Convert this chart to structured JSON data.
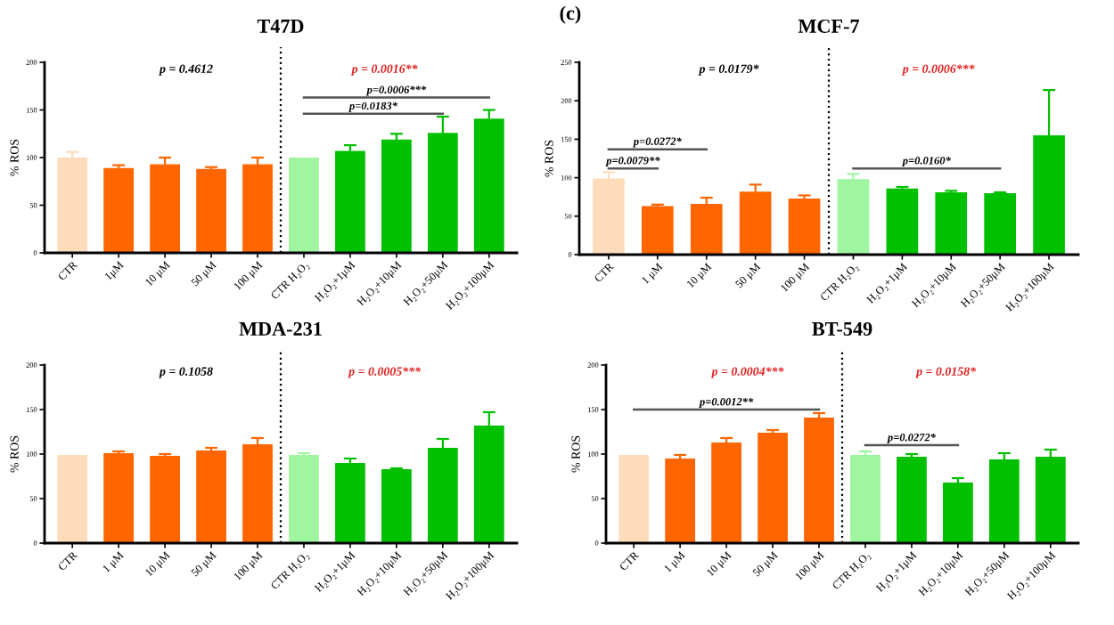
{
  "chart_data": [
    {
      "type": "bar",
      "title": "T47D",
      "ylabel": "% ROS",
      "categories": [
        "CTR",
        "1μM",
        "10 μM",
        "50 μM",
        "100 μM",
        "CTR H₂O₂",
        "H₂O₂+1μM",
        "H₂O₂+10μM",
        "H₂O₂+50μM",
        "H₂O₂+100μM"
      ],
      "values": [
        100,
        89,
        93,
        88,
        93,
        100,
        107,
        119,
        126,
        141
      ],
      "errors": [
        6,
        3,
        7,
        2,
        7,
        null,
        6,
        6,
        17,
        9
      ],
      "colors": [
        "#fddcbc",
        "#ff6600",
        "#ff6600",
        "#ff6600",
        "#ff6600",
        "#a0f5a0",
        "#00c000",
        "#00c000",
        "#00c000",
        "#00c000"
      ],
      "ylim": [
        0,
        200
      ],
      "yticks": [
        0,
        50,
        100,
        150,
        200
      ],
      "annotations": [
        "p = 0.4612",
        "p = 0.0016**",
        "p=0.0006***",
        "p=0.0183*"
      ]
    },
    {
      "type": "bar",
      "title": "MCF-7",
      "ylabel": "% ROS",
      "categories": [
        "CTR",
        "1 μM",
        "10 μM",
        "50 μM",
        "100 μM",
        "CTR H₂O₂",
        "H₂O₂+1μM",
        "H₂O₂+10μM",
        "H₂O₂+50μM",
        "H₂O₂+100μM"
      ],
      "values": [
        99,
        63,
        66,
        82,
        73,
        98,
        86,
        81,
        80,
        155
      ],
      "errors": [
        8,
        2,
        8,
        9,
        4,
        7,
        2,
        2,
        1,
        59
      ],
      "colors": [
        "#fddcbc",
        "#ff6600",
        "#ff6600",
        "#ff6600",
        "#ff6600",
        "#a0f5a0",
        "#00c000",
        "#00c000",
        "#00c000",
        "#00c000"
      ],
      "ylim": [
        0,
        250
      ],
      "yticks": [
        0,
        50,
        100,
        150,
        200,
        250
      ],
      "annotations": [
        "p = 0.0179*",
        "p = 0.0006***",
        "(c)",
        "p=0.0272*",
        "p=0.0079**",
        "p=0.0160*"
      ]
    },
    {
      "type": "bar",
      "title": "MDA-231",
      "ylabel": "% ROS",
      "categories": [
        "CTR",
        "1 μM",
        "10 μM",
        "50 μM",
        "100 μM",
        "CTR H₂O₂",
        "H₂O₂+1μM",
        "H₂O₂+10μM",
        "H₂O₂+50μM",
        "H₂O₂+100μM"
      ],
      "values": [
        99,
        101,
        98,
        104,
        111,
        99,
        90,
        83,
        107,
        132
      ],
      "errors": [
        null,
        2,
        2,
        3,
        7,
        2,
        5,
        1,
        10,
        15
      ],
      "colors": [
        "#fddcbc",
        "#ff6600",
        "#ff6600",
        "#ff6600",
        "#ff6600",
        "#a0f5a0",
        "#00c000",
        "#00c000",
        "#00c000",
        "#00c000"
      ],
      "ylim": [
        0,
        200
      ],
      "yticks": [
        0,
        50,
        100,
        150,
        200
      ],
      "annotations": [
        "p = 0.1058",
        "p = 0.0005***"
      ]
    },
    {
      "type": "bar",
      "title": "BT-549",
      "ylabel": "% ROS",
      "categories": [
        "CTR",
        "1 μM",
        "10 μM",
        "50 μM",
        "100 μM",
        "CTR H₂O₂",
        "H₂O₂+1μM",
        "H₂O₂+10μM",
        "H₂O₂+50μM",
        "H₂O₂+100μM"
      ],
      "values": [
        99,
        95,
        113,
        124,
        141,
        99,
        97,
        68,
        94,
        97
      ],
      "errors": [
        null,
        4,
        5,
        3,
        5,
        4,
        3,
        5,
        7,
        8
      ],
      "colors": [
        "#fddcbc",
        "#ff6600",
        "#ff6600",
        "#ff6600",
        "#ff6600",
        "#a0f5a0",
        "#00c000",
        "#00c000",
        "#00c000",
        "#00c000"
      ],
      "ylim": [
        0,
        200
      ],
      "yticks": [
        0,
        50,
        100,
        150,
        200
      ],
      "annotations": [
        "p = 0.0004***",
        "p = 0.0158*",
        "p=0.0012**",
        "p=0.0272*"
      ]
    }
  ]
}
